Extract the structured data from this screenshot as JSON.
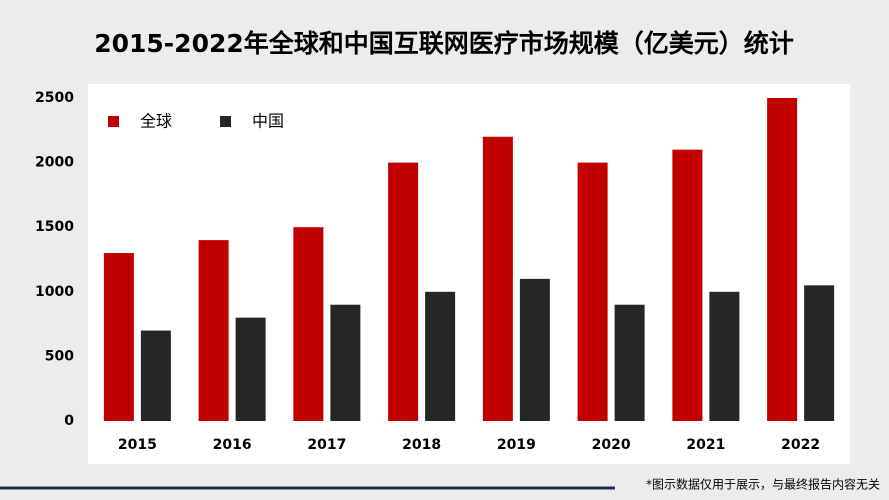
{
  "chart_data": {
    "type": "bar",
    "title": "2015-2022年全球和中国互联网医疗市场规模（亿美元）统计",
    "categories": [
      "2015",
      "2016",
      "2017",
      "2018",
      "2019",
      "2020",
      "2021",
      "2022"
    ],
    "series": [
      {
        "name": "全球",
        "color": "#c00000",
        "values": [
          1300,
          1400,
          1500,
          2000,
          2200,
          2000,
          2100,
          2500
        ]
      },
      {
        "name": "中国",
        "color": "#262626",
        "values": [
          700,
          800,
          900,
          1000,
          1100,
          900,
          1000,
          1050
        ]
      }
    ],
    "ylim": [
      0,
      2500
    ],
    "yticks": [
      0,
      500,
      1000,
      1500,
      2000,
      2500
    ],
    "grid": false,
    "legend": "top-left",
    "note": "*图示数据仅用于展示，与最终报告内容无关"
  }
}
